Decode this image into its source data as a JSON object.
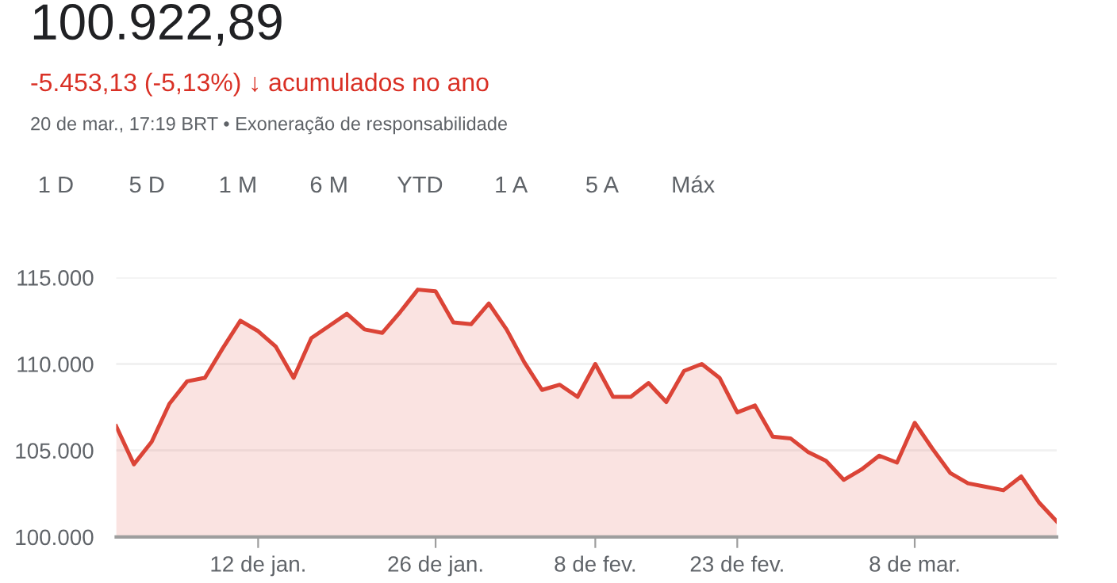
{
  "chart_data": {
    "type": "area",
    "title": "100.922,89",
    "subtitle": "-5.453,13 (-5,13%) ↓ acumulados no ano",
    "annotations": [
      "20 de mar., 17:19 BRT • Exoneração de responsabilidade",
      "1 D",
      "5 D",
      "1 M",
      "6 M",
      "YTD",
      "1 A",
      "5 A",
      "Máx"
    ],
    "categories": [
      null,
      null,
      null,
      null,
      null,
      null,
      null,
      null,
      "12 de jan.",
      null,
      null,
      null,
      null,
      null,
      null,
      null,
      null,
      null,
      "26 de jan.",
      null,
      null,
      null,
      null,
      null,
      null,
      null,
      null,
      "8 de fev.",
      null,
      null,
      null,
      null,
      null,
      null,
      null,
      "23 de fev.",
      null,
      null,
      null,
      null,
      null,
      null,
      null,
      null,
      null,
      "8 de mar.",
      null,
      null,
      null,
      null,
      null,
      null,
      null,
      null
    ],
    "values": [
      106400,
      104200,
      105500,
      107700,
      109000,
      109200,
      110900,
      112500,
      111900,
      111000,
      109200,
      111500,
      112200,
      112900,
      112000,
      111800,
      113000,
      114300,
      114200,
      112400,
      112300,
      113500,
      112000,
      110100,
      108500,
      108800,
      108100,
      110000,
      108100,
      108100,
      108900,
      107800,
      109600,
      110000,
      109200,
      107200,
      107600,
      105800,
      105700,
      104900,
      104400,
      103300,
      103900,
      104700,
      104300,
      106600,
      105100,
      103700,
      103100,
      102900,
      102700,
      103500,
      102000,
      100900
    ],
    "color": "#db4437",
    "ylim": [
      100000,
      115000
    ],
    "yticks": [
      {
        "value": 100000,
        "label": "100.000"
      },
      {
        "value": 105000,
        "label": "105.000"
      },
      {
        "value": 110000,
        "label": "110.000"
      },
      {
        "value": 115000,
        "label": "115.000"
      }
    ],
    "grid": "y"
  }
}
